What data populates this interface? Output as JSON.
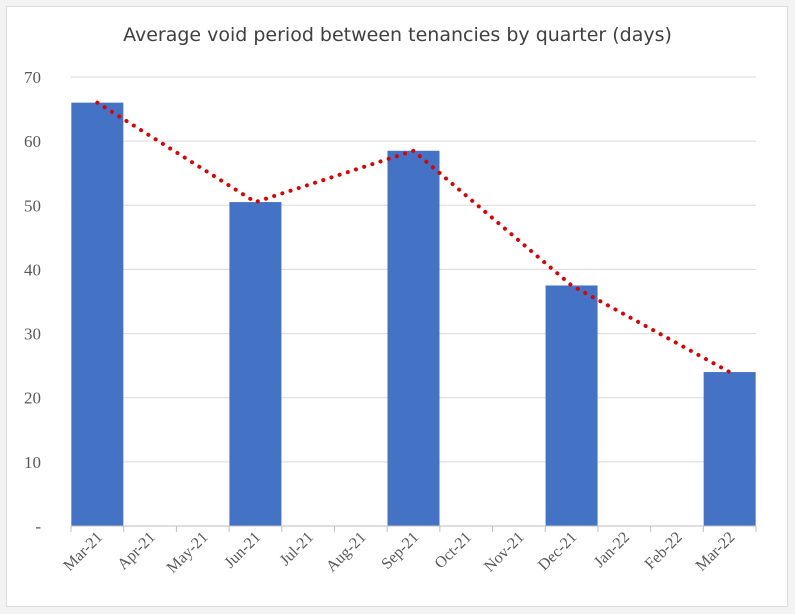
{
  "chart_data": {
    "type": "bar",
    "title": "Average void period between tenancies by quarter (days)",
    "xlabel": "",
    "ylabel": "",
    "ylim": [
      0,
      70
    ],
    "yticks": [
      0,
      10,
      20,
      30,
      40,
      50,
      60,
      70
    ],
    "yticklabels": [
      "-",
      "10",
      "20",
      "30",
      "40",
      "50",
      "60",
      "70"
    ],
    "categories": [
      "Mar-21",
      "Apr-21",
      "May-21",
      "Jun-21",
      "Jul-21",
      "Aug-21",
      "Sep-21",
      "Oct-21",
      "Nov-21",
      "Dec-21",
      "Jan-22",
      "Feb-22",
      "Mar-22"
    ],
    "values": [
      66,
      null,
      null,
      50.5,
      null,
      null,
      58.5,
      null,
      null,
      37.5,
      null,
      null,
      24
    ],
    "trendline": {
      "style": "dotted",
      "points": [
        {
          "x": "Mar-21",
          "y": 66
        },
        {
          "x": "Jun-21",
          "y": 50.5
        },
        {
          "x": "Sep-21",
          "y": 58.5
        },
        {
          "x": "Dec-21",
          "y": 37.5
        },
        {
          "x": "Mar-22",
          "y": 24
        }
      ]
    },
    "grid": true,
    "colors": {
      "bar": "#4472c4",
      "trendline": "#e00000",
      "grid": "#d9d9d9",
      "axis": "#bfbfbf"
    }
  }
}
